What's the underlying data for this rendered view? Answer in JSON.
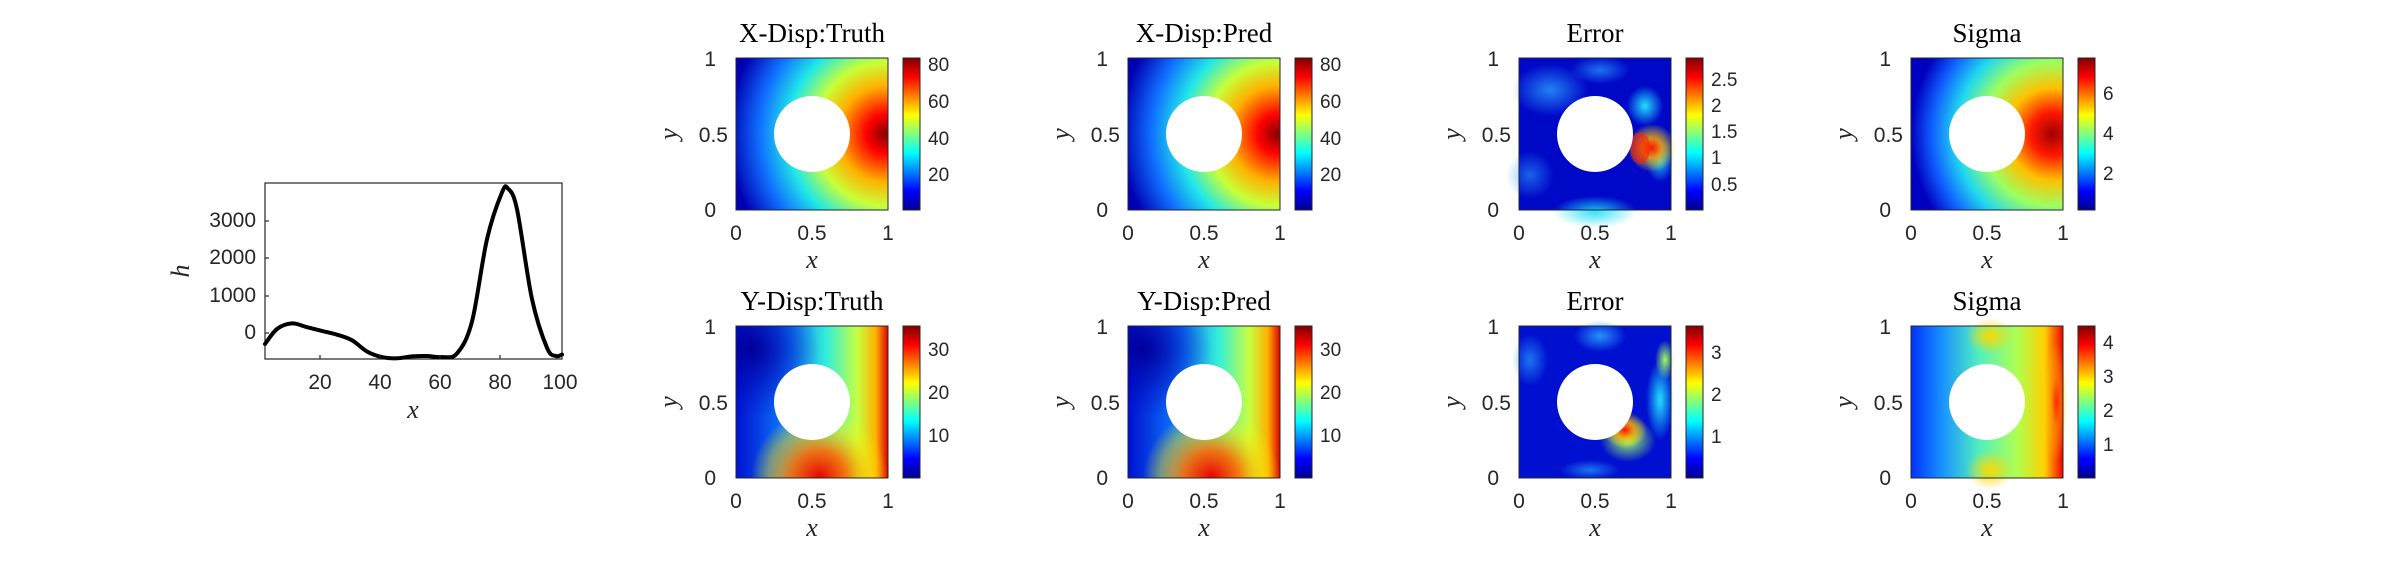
{
  "colors": {
    "line": "#000000",
    "axis": "#262626",
    "colormap": "jet",
    "hole": "#ffffff"
  },
  "chart_data": [
    {
      "id": "h-curve",
      "type": "line",
      "xlabel": "x",
      "ylabel": "h",
      "xlim": [
        1,
        100
      ],
      "ylim": [
        -700,
        4000
      ],
      "xticks": [
        "20",
        "40",
        "60",
        "80",
        "100"
      ],
      "yticks": [
        "0",
        "1000",
        "2000",
        "3000"
      ],
      "grid": false,
      "series": [
        {
          "x": [
            1,
            5,
            10,
            15,
            20,
            25,
            30,
            35,
            40,
            45,
            50,
            55,
            60,
            65,
            70,
            75,
            80,
            82,
            85,
            90,
            95,
            98,
            100
          ],
          "values": [
            -300,
            100,
            250,
            150,
            50,
            -50,
            -200,
            -500,
            -650,
            -680,
            -630,
            -620,
            -650,
            -550,
            300,
            2500,
            3750,
            3850,
            3300,
            900,
            -400,
            -620,
            -580
          ]
        }
      ]
    },
    {
      "id": "xdisp-truth",
      "type": "heatmap",
      "title": "X-Disp:Truth",
      "xlabel": "x",
      "ylabel": "y",
      "xticks": [
        "0",
        "0.5",
        "1"
      ],
      "yticks": [
        "0",
        "0.5",
        "1"
      ],
      "hole": {
        "center": [
          0.5,
          0.5
        ],
        "radius": 0.25
      },
      "clim": [
        0,
        83
      ],
      "cbticks": [
        "20",
        "40",
        "60",
        "80"
      ]
    },
    {
      "id": "xdisp-pred",
      "type": "heatmap",
      "title": "X-Disp:Pred",
      "xlabel": "x",
      "ylabel": "y",
      "xticks": [
        "0",
        "0.5",
        "1"
      ],
      "yticks": [
        "0",
        "0.5",
        "1"
      ],
      "hole": {
        "center": [
          0.5,
          0.5
        ],
        "radius": 0.25
      },
      "clim": [
        0,
        83
      ],
      "cbticks": [
        "20",
        "40",
        "60",
        "80"
      ]
    },
    {
      "id": "xdisp-error",
      "type": "heatmap",
      "title": "Error",
      "xlabel": "x",
      "ylabel": "y",
      "xticks": [
        "0",
        "0.5",
        "1"
      ],
      "yticks": [
        "0",
        "0.5",
        "1"
      ],
      "hole": {
        "center": [
          0.5,
          0.5
        ],
        "radius": 0.25
      },
      "clim": [
        0,
        2.9
      ],
      "cbticks": [
        "0.5",
        "1",
        "1.5",
        "2",
        "2.5"
      ]
    },
    {
      "id": "xdisp-sigma",
      "type": "heatmap",
      "title": "Sigma",
      "xlabel": "x",
      "ylabel": "y",
      "xticks": [
        "0",
        "0.5",
        "1"
      ],
      "yticks": [
        "0",
        "0.5",
        "1"
      ],
      "hole": {
        "center": [
          0.5,
          0.5
        ],
        "radius": 0.25
      },
      "clim": [
        0,
        7.6
      ],
      "cbticks": [
        "2",
        "4",
        "6"
      ]
    },
    {
      "id": "ydisp-truth",
      "type": "heatmap",
      "title": "Y-Disp:Truth",
      "xlabel": "x",
      "ylabel": "y",
      "xticks": [
        "0",
        "0.5",
        "1"
      ],
      "yticks": [
        "0",
        "0.5",
        "1"
      ],
      "hole": {
        "center": [
          0.5,
          0.5
        ],
        "radius": 0.25
      },
      "clim": [
        0,
        35
      ],
      "cbticks": [
        "10",
        "20",
        "30"
      ]
    },
    {
      "id": "ydisp-pred",
      "type": "heatmap",
      "title": "Y-Disp:Pred",
      "xlabel": "x",
      "ylabel": "y",
      "xticks": [
        "0",
        "0.5",
        "1"
      ],
      "yticks": [
        "0",
        "0.5",
        "1"
      ],
      "hole": {
        "center": [
          0.5,
          0.5
        ],
        "radius": 0.25
      },
      "clim": [
        0,
        35
      ],
      "cbticks": [
        "10",
        "20",
        "30"
      ]
    },
    {
      "id": "ydisp-error",
      "type": "heatmap",
      "title": "Error",
      "xlabel": "x",
      "ylabel": "y",
      "xticks": [
        "0",
        "0.5",
        "1"
      ],
      "yticks": [
        "0",
        "0.5",
        "1"
      ],
      "hole": {
        "center": [
          0.5,
          0.5
        ],
        "radius": 0.25
      },
      "clim": [
        0,
        3.6
      ],
      "cbticks": [
        "1",
        "2",
        "3"
      ]
    },
    {
      "id": "ydisp-sigma",
      "type": "heatmap",
      "title": "Sigma",
      "xlabel": "x",
      "ylabel": "y",
      "xticks": [
        "0",
        "0.5",
        "1"
      ],
      "yticks": [
        "0",
        "0.5",
        "1"
      ],
      "hole": {
        "center": [
          0.5,
          0.5
        ],
        "radius": 0.25
      },
      "clim": [
        0,
        4.5
      ],
      "cbticks": [
        "1",
        "2",
        "3",
        "4"
      ]
    }
  ]
}
